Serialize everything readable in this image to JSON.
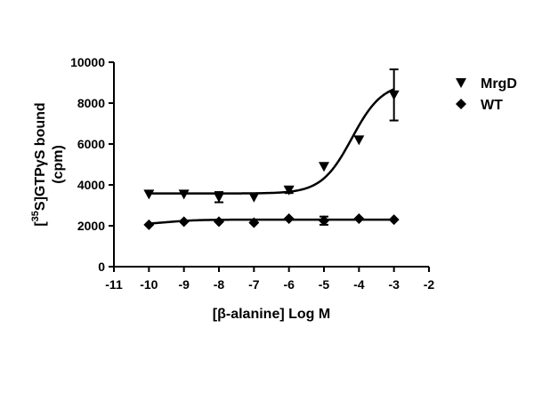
{
  "chart_data": {
    "type": "scatter",
    "xlabel": "[β-alanine] Log M",
    "ylabel_prefix": "[",
    "ylabel_sup": "35",
    "ylabel_main": "S]GTPγS bound",
    "ylabel_unit": "(cpm)",
    "xlim": [
      -11,
      -2
    ],
    "ylim": [
      0,
      10000
    ],
    "xticks": [
      -11,
      -10,
      -9,
      -8,
      -7,
      -6,
      -5,
      -4,
      -3,
      -2
    ],
    "yticks": [
      0,
      2000,
      4000,
      6000,
      8000,
      10000
    ],
    "xtick_labels": [
      "-11",
      "-10",
      "-9",
      "-8",
      "-7",
      "-6",
      "-5",
      "-4",
      "-3",
      "-2"
    ],
    "ytick_labels": [
      "0",
      "2000",
      "4000",
      "6000",
      "8000",
      "10000"
    ],
    "grid": false,
    "legend_position": "top-right",
    "series": [
      {
        "name": "MrgD",
        "marker": "triangle-down",
        "x": [
          -10,
          -9,
          -8,
          -7,
          -6,
          -5,
          -4,
          -3
        ],
        "y": [
          3550,
          3550,
          3400,
          3400,
          3750,
          4900,
          6200,
          8400
        ],
        "error": [
          0,
          0,
          250,
          0,
          150,
          0,
          0,
          1250
        ],
        "fit": {
          "bottom": 3580,
          "top": 9000,
          "logEC50": -4.2,
          "hill": 1.0
        }
      },
      {
        "name": "WT",
        "marker": "diamond",
        "x": [
          -10,
          -9,
          -8,
          -7,
          -6,
          -5,
          -4,
          -3
        ],
        "y": [
          2050,
          2200,
          2200,
          2150,
          2350,
          2250,
          2350,
          2300
        ],
        "error": [
          0,
          0,
          0,
          0,
          0,
          200,
          0,
          0
        ],
        "fit": {
          "bottom": 2050,
          "top": 2300,
          "logEC50": -9.5,
          "hill": 1.0
        }
      }
    ]
  }
}
